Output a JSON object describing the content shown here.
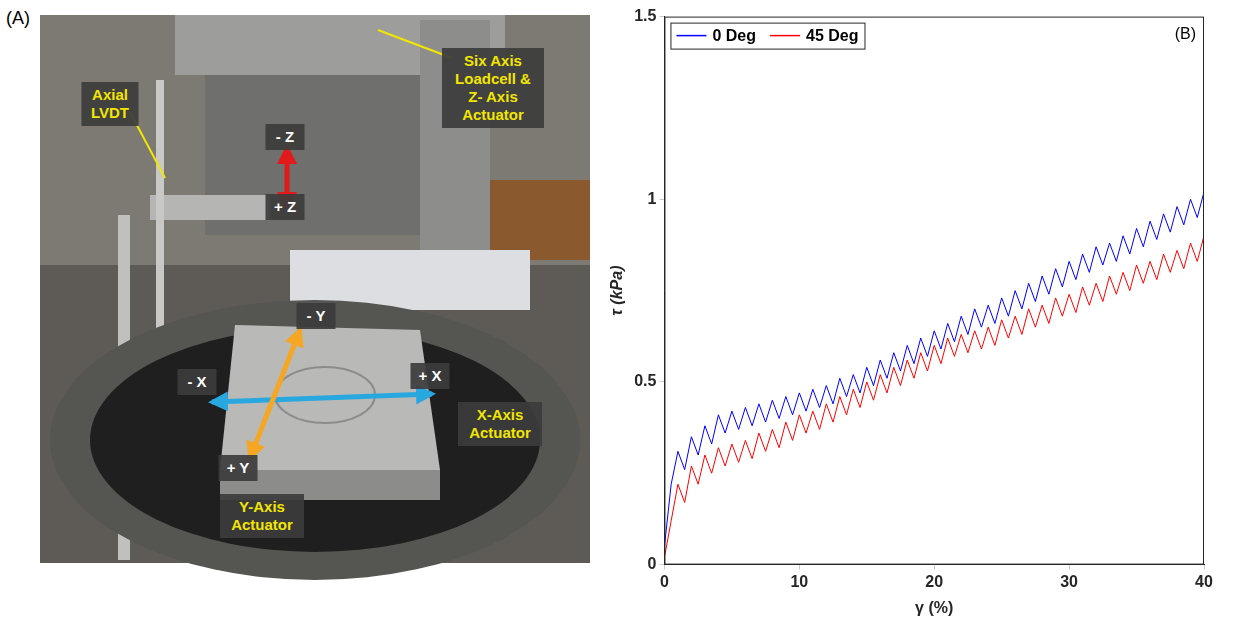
{
  "panel_a": {
    "letter": "(A)",
    "labels": {
      "loadcell": "Six Axis Loadcell & Z- Axis Actuator",
      "lvdt": "Axial LVDT",
      "minus_z": "- Z",
      "plus_z": "+ Z",
      "minus_y": "- Y",
      "plus_y": "+ Y",
      "minus_x": "- X",
      "plus_x": "+ X",
      "x_actuator": "X-Axis Actuator",
      "y_actuator": "Y-Axis Actuator"
    }
  },
  "chart_data": {
    "type": "line",
    "panel_label": "(B)",
    "x_label": "γ (%)",
    "y_label": "τ (kPa)",
    "x": [
      0,
      0.5,
      1,
      1.5,
      2,
      2.5,
      3,
      3.5,
      4,
      4.5,
      5,
      5.5,
      6,
      6.5,
      7,
      7.5,
      8,
      8.5,
      9,
      9.5,
      10,
      10.5,
      11,
      11.5,
      12,
      12.5,
      13,
      13.5,
      14,
      14.5,
      15,
      15.5,
      16,
      16.5,
      17,
      17.5,
      18,
      18.5,
      19,
      19.5,
      20,
      20.5,
      21,
      21.5,
      22,
      22.5,
      23,
      23.5,
      24,
      24.5,
      25,
      25.5,
      26,
      26.5,
      27,
      27.5,
      28,
      28.5,
      29,
      29.5,
      30,
      30.5,
      31,
      31.5,
      32,
      32.5,
      33,
      33.5,
      34,
      34.5,
      35,
      35.5,
      36,
      36.5,
      37,
      37.5,
      38,
      38.5,
      39,
      39.5,
      40
    ],
    "series": [
      {
        "name": "0 Deg",
        "color": "#0000ff",
        "line_style": "solid",
        "values": [
          0.05,
          0.22,
          0.31,
          0.26,
          0.35,
          0.3,
          0.38,
          0.33,
          0.41,
          0.36,
          0.42,
          0.37,
          0.43,
          0.38,
          0.44,
          0.39,
          0.45,
          0.4,
          0.46,
          0.41,
          0.47,
          0.42,
          0.48,
          0.43,
          0.49,
          0.44,
          0.51,
          0.46,
          0.52,
          0.47,
          0.54,
          0.49,
          0.56,
          0.51,
          0.58,
          0.53,
          0.6,
          0.55,
          0.62,
          0.57,
          0.64,
          0.59,
          0.66,
          0.61,
          0.68,
          0.63,
          0.7,
          0.65,
          0.71,
          0.66,
          0.73,
          0.68,
          0.75,
          0.7,
          0.77,
          0.72,
          0.79,
          0.74,
          0.81,
          0.76,
          0.83,
          0.78,
          0.85,
          0.8,
          0.87,
          0.82,
          0.88,
          0.83,
          0.9,
          0.85,
          0.92,
          0.87,
          0.94,
          0.89,
          0.96,
          0.91,
          0.98,
          0.93,
          1.0,
          0.95,
          1.02
        ]
      },
      {
        "name": "45 Deg",
        "color": "#ff0000",
        "line_style": "solid",
        "values": [
          0.02,
          0.12,
          0.22,
          0.17,
          0.27,
          0.22,
          0.3,
          0.25,
          0.32,
          0.27,
          0.33,
          0.28,
          0.34,
          0.29,
          0.36,
          0.31,
          0.37,
          0.32,
          0.39,
          0.34,
          0.41,
          0.36,
          0.42,
          0.37,
          0.44,
          0.39,
          0.46,
          0.41,
          0.48,
          0.43,
          0.5,
          0.45,
          0.52,
          0.47,
          0.54,
          0.49,
          0.56,
          0.51,
          0.58,
          0.53,
          0.6,
          0.55,
          0.62,
          0.57,
          0.63,
          0.58,
          0.64,
          0.59,
          0.65,
          0.6,
          0.67,
          0.62,
          0.68,
          0.63,
          0.7,
          0.65,
          0.71,
          0.66,
          0.73,
          0.68,
          0.74,
          0.69,
          0.76,
          0.71,
          0.77,
          0.72,
          0.79,
          0.74,
          0.8,
          0.75,
          0.82,
          0.77,
          0.83,
          0.78,
          0.85,
          0.8,
          0.86,
          0.81,
          0.88,
          0.83,
          0.9
        ]
      }
    ],
    "xlim": [
      0,
      40
    ],
    "ylim": [
      0,
      1.5
    ],
    "xticks": [
      0,
      10,
      20,
      30,
      40
    ],
    "yticks": [
      0,
      0.5,
      1,
      1.5
    ],
    "grid": false,
    "legend": "upper left"
  }
}
